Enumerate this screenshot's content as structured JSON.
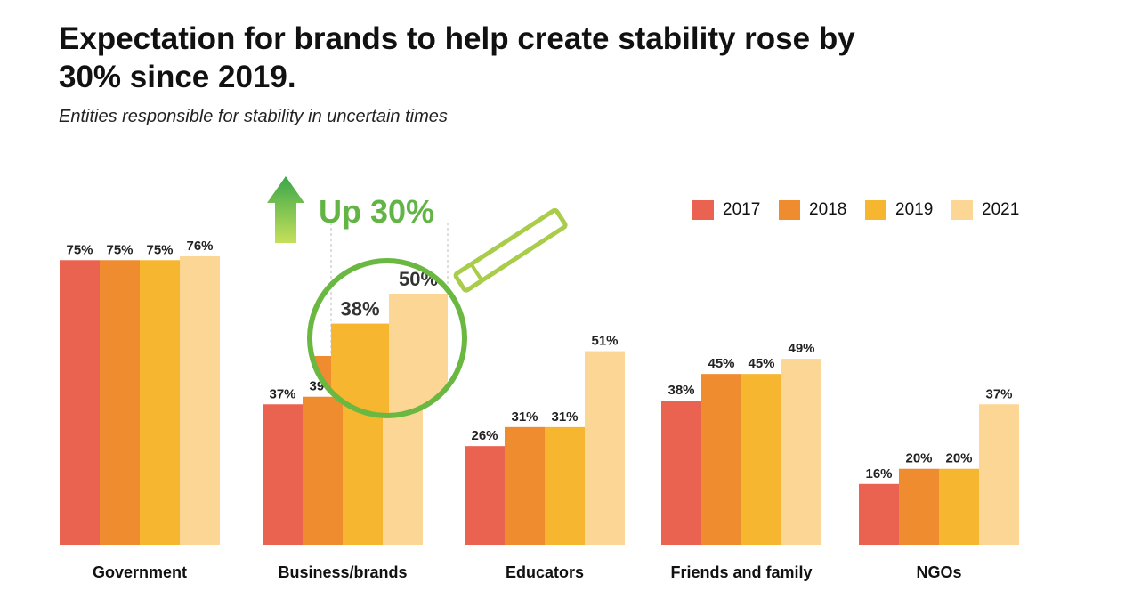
{
  "title": "Expectation for brands to help create stability rose by 30% since 2019.",
  "subtitle": "Entities responsible for stability in uncertain times",
  "callout": {
    "text": "Up 30%",
    "color": "#62b545",
    "zoom_labels": [
      "38%",
      "50%"
    ],
    "zoom_values": [
      38,
      50
    ]
  },
  "colors": {
    "2017": "#ea6350",
    "2018": "#ee8c2f",
    "2019": "#f6b62f",
    "2021": "#fbd694"
  },
  "chart_data": {
    "type": "bar",
    "title": "Expectation for brands to help create stability rose by 30% since 2019.",
    "subtitle": "Entities responsible for stability in uncertain times",
    "categories": [
      "Government",
      "Business/brands",
      "Educators",
      "Friends and family",
      "NGOs"
    ],
    "series": [
      {
        "name": "2017",
        "values": [
          75,
          37,
          26,
          38,
          16
        ],
        "labels": [
          "75%",
          "37%",
          "26%",
          "38%",
          "16%"
        ]
      },
      {
        "name": "2018",
        "values": [
          75,
          39,
          31,
          45,
          20
        ],
        "labels": [
          "75%",
          "39%",
          "31%",
          "45%",
          "20%"
        ]
      },
      {
        "name": "2019",
        "values": [
          75,
          38,
          31,
          45,
          20
        ],
        "labels": [
          "75%",
          "",
          "31%",
          "45%",
          "20%"
        ]
      },
      {
        "name": "2021",
        "values": [
          76,
          50,
          51,
          49,
          37
        ],
        "labels": [
          "76%",
          "",
          "51%",
          "49%",
          "37%"
        ]
      }
    ],
    "ylim": [
      0,
      76
    ],
    "grid": false,
    "legend": "top-right"
  }
}
